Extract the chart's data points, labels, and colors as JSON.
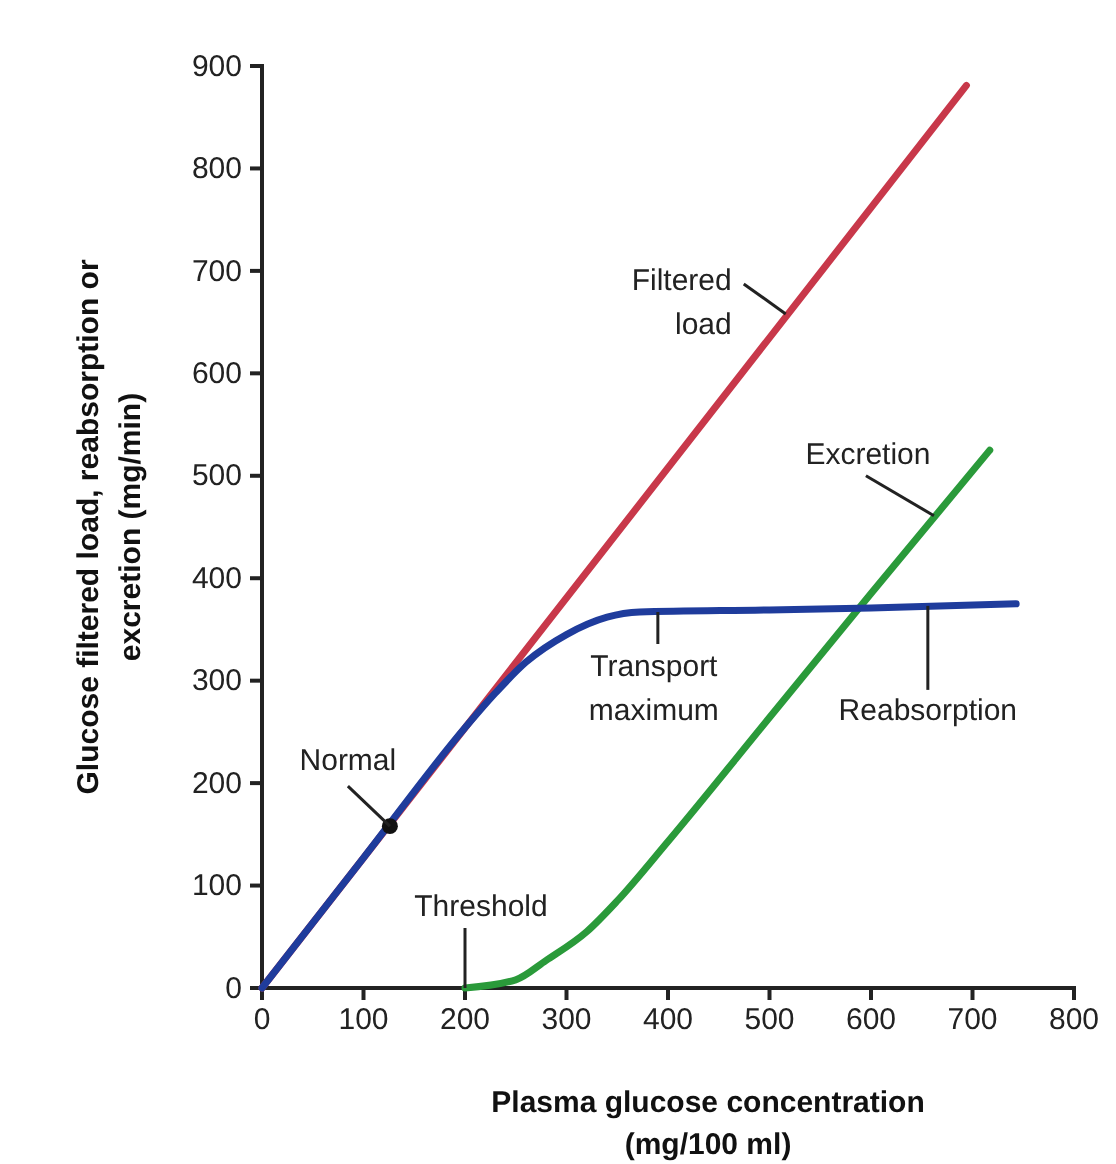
{
  "chart_data": {
    "type": "line",
    "xlabel": "Plasma glucose concentration (mg/100 ml)",
    "ylabel": "Glucose filtered load, reabsorption or excretion (mg/min)",
    "xlim": [
      0,
      800
    ],
    "xticks": [
      0,
      100,
      200,
      300,
      400,
      500,
      600,
      700,
      800
    ],
    "ylim": [
      0,
      900
    ],
    "yticks": [
      0,
      100,
      200,
      300,
      400,
      500,
      600,
      700,
      800,
      900
    ],
    "grid": false,
    "marker": "none",
    "line_style": "solid",
    "series": [
      {
        "color": "#c8384a",
        "x": [
          0,
          694
        ],
        "values": [
          0,
          881
        ]
      },
      {
        "color": "#2a9a3a",
        "x": [
          200,
          250,
          280,
          320,
          350,
          400,
          500,
          600,
          717
        ],
        "values": [
          0,
          8,
          27,
          55,
          85,
          143,
          264,
          385,
          525
        ]
      },
      {
        "color": "#1f3c9c",
        "x": [
          0,
          100,
          200,
          230,
          260,
          300,
          340,
          372,
          500,
          600,
          743
        ],
        "values": [
          0,
          127,
          254,
          288,
          318,
          345,
          362,
          367,
          369,
          371,
          375
        ]
      },
      {
        "type": "scatter",
        "color": "#111111",
        "marker": "circle",
        "x": [
          126
        ],
        "values": [
          158
        ]
      }
    ],
    "annotations": [
      {
        "text": "Filtered load",
        "x": 516,
        "y": 658
      },
      {
        "text": "Excretion",
        "x": 662,
        "y": 461
      },
      {
        "text": "Transport maximum",
        "x": 390,
        "y": 367
      },
      {
        "text": "Reabsorption",
        "x": 656,
        "y": 373
      },
      {
        "text": "Normal",
        "x": 126,
        "y": 158
      },
      {
        "text": "Threshold",
        "x": 200,
        "y": 0
      }
    ]
  }
}
